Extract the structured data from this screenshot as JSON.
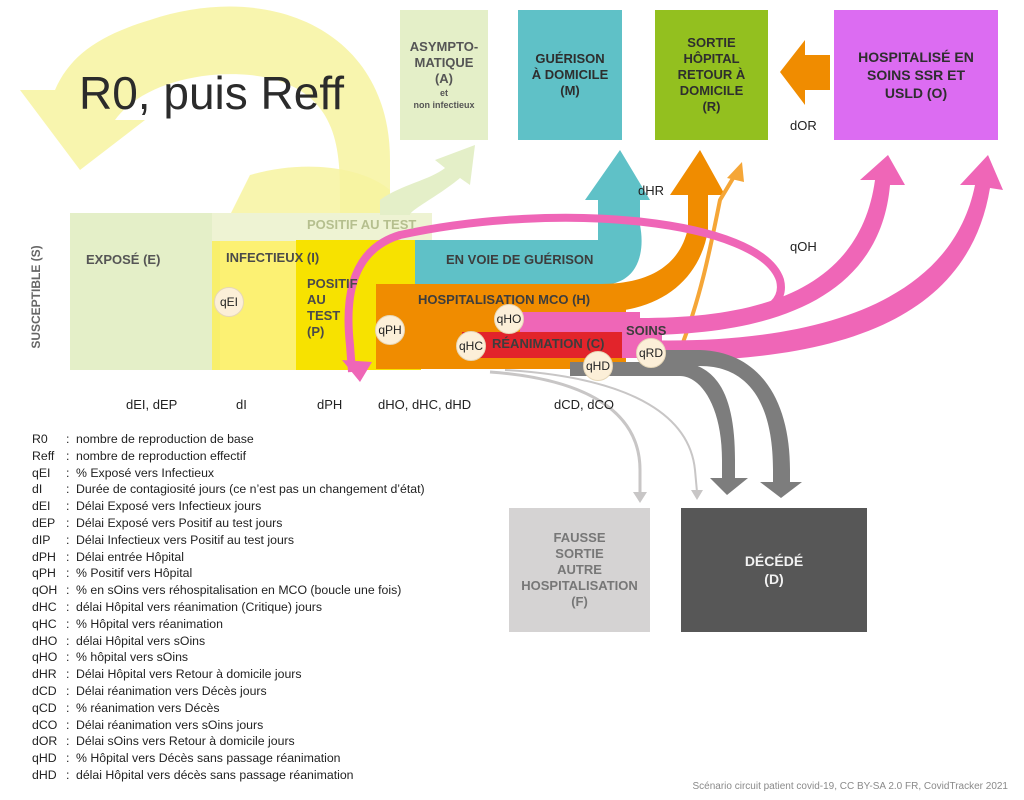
{
  "title": "R0, puis Reff",
  "susceptible": "SUSCEPTIBLE (S)",
  "compartments": {
    "expose": "EXPOSÉ (E)",
    "infectieux": "INFECTIEUX (I)",
    "positif_test_band": "POSITIF AU TEST",
    "positif": [
      "POSITIF",
      "AU",
      "TEST",
      "(P)"
    ],
    "en_voie": "EN VOIE DE GUÉRISON",
    "hospitalisation": "HOSPITALISATION MCO (H)",
    "reanimation": "RÉANIMATION (C)",
    "soins": "SOINS",
    "asymptomatique": [
      "ASYMPTO-",
      "MATIQUE",
      "(A)"
    ],
    "asympto_note": [
      "et",
      "non infectieux"
    ],
    "guerison": [
      "GUÉRISON",
      "À DOMICILE",
      "(M)"
    ],
    "sortie": [
      "SORTIE",
      "HÔPITAL",
      "RETOUR À",
      "DOMICILE",
      "(R)"
    ],
    "hospitalise": [
      "HOSPITALISÉ EN",
      "SOINS SSR ET",
      "USLD (O)"
    ],
    "fausse_sortie": [
      "FAUSSE",
      "SORTIE",
      "AUTRE",
      "HOSPITALISATION",
      "(F)"
    ],
    "decede": [
      "DÉCÉDÉ",
      "(D)"
    ]
  },
  "badges": {
    "qEI": "qEI",
    "qPH": "qPH",
    "qHO": "qHO",
    "qHC": "qHC",
    "qHD": "qHD",
    "qRD": "qRD"
  },
  "params": {
    "dEI_dEP": "dEI, dEP",
    "dI": "dI",
    "dPH": "dPH",
    "dHO_dHC_dHD": "dHO, dHC, dHD",
    "dCD_dCO": "dCD, dCO",
    "dHR": "dHR",
    "qOH": "qOH",
    "dOR": "dOR"
  },
  "legend": [
    {
      "k": "R0",
      "v": "nombre de reproduction de base"
    },
    {
      "k": "Reff",
      "v": "nombre de reproduction effectif"
    },
    {
      "k": "qEI",
      "v": "% Exposé vers Infectieux"
    },
    {
      "k": "dI",
      "v": "Durée de contagiosité jours (ce n’est pas un changement d’état)"
    },
    {
      "k": "dEI",
      "v": "Délai Exposé vers Infectieux jours"
    },
    {
      "k": "dEP",
      "v": "Délai Exposé vers Positif au test jours"
    },
    {
      "k": "dIP",
      "v": "Délai Infectieux vers Positif au test jours"
    },
    {
      "k": "dPH",
      "v": "Délai entrée Hôpital"
    },
    {
      "k": "qPH",
      "v": "% Positif vers Hôpital"
    },
    {
      "k": "qOH",
      "v": "% en sOins vers réhospitalisation en MCO (boucle une fois)"
    },
    {
      "k": "dHC",
      "v": "délai Hôpital vers réanimation (Critique) jours"
    },
    {
      "k": "qHC",
      "v": "% Hôpital vers réanimation"
    },
    {
      "k": "dHO",
      "v": "délai Hôpital vers sOins"
    },
    {
      "k": "qHO",
      "v": "% hôpital vers sOins"
    },
    {
      "k": "dHR",
      "v": "Délai Hôpital vers Retour à domicile jours"
    },
    {
      "k": "dCD",
      "v": "Délai réanimation vers Décès jours"
    },
    {
      "k": "qCD",
      "v": "% réanimation vers Décès"
    },
    {
      "k": "dCO",
      "v": "Délai réanimation vers sOins jours"
    },
    {
      "k": "dOR",
      "v": "Délai sOins vers Retour à domicile jours"
    },
    {
      "k": "qHD",
      "v": "% Hôpital vers Décès sans passage réanimation"
    },
    {
      "k": "dHD",
      "v": "délai Hôpital vers décès sans passage réanimation"
    }
  ],
  "credit": "Scénario circuit patient covid-19, CC BY-SA 2.0 FR, CovidTracker 2021",
  "colors": {
    "yellow_light": "#f7f3a0",
    "green_light": "#e4efc8",
    "teal": "#5fc1c7",
    "green": "#93c01f",
    "magenta": "#dc6cf2",
    "orange": "#f08c00",
    "pink": "#ef66b7",
    "red": "#e2242b",
    "grey_dark": "#575757",
    "grey_light": "#d5d3d3"
  }
}
